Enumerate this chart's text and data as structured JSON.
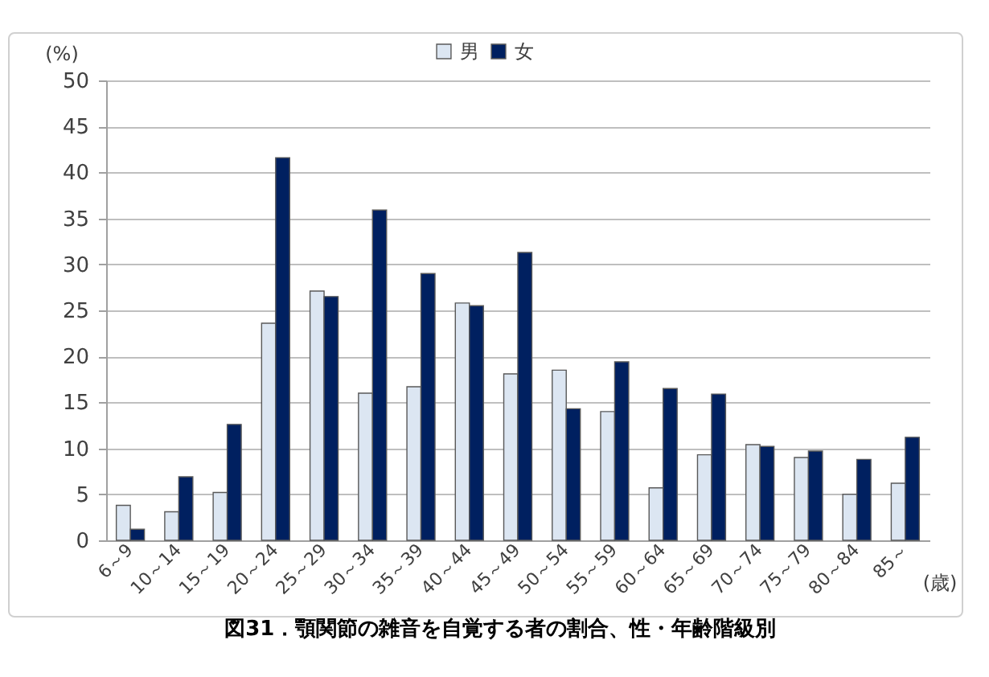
{
  "chart_data": {
    "type": "bar",
    "title": "図31．顎関節の雑音を自覚する者の割合、性・年齢階級別",
    "xlabel": "(歳)",
    "ylabel": "(%)",
    "categories": [
      "6～9",
      "10～14",
      "15～19",
      "20～24",
      "25～29",
      "30～34",
      "35～39",
      "40～44",
      "45～49",
      "50～54",
      "55～59",
      "60～64",
      "65～69",
      "70～74",
      "75～79",
      "80～84",
      "85～"
    ],
    "series": [
      {
        "name": "男",
        "color": "#dce6f2",
        "values": [
          3.8,
          3.1,
          5.2,
          23.6,
          27.1,
          16.0,
          16.7,
          25.8,
          18.1,
          18.5,
          14.0,
          5.7,
          9.3,
          10.4,
          9.0,
          5.0,
          6.2
        ]
      },
      {
        "name": "女",
        "color": "#002060",
        "values": [
          1.2,
          6.9,
          12.6,
          41.6,
          26.5,
          35.9,
          29.0,
          25.5,
          31.3,
          14.3,
          19.4,
          16.5,
          15.9,
          10.2,
          9.7,
          8.8,
          11.2
        ]
      }
    ],
    "ylim": [
      0,
      50
    ],
    "yticks": [
      0,
      5,
      10,
      15,
      20,
      25,
      30,
      35,
      40,
      45,
      50
    ],
    "grid": "y",
    "legend": "top"
  }
}
